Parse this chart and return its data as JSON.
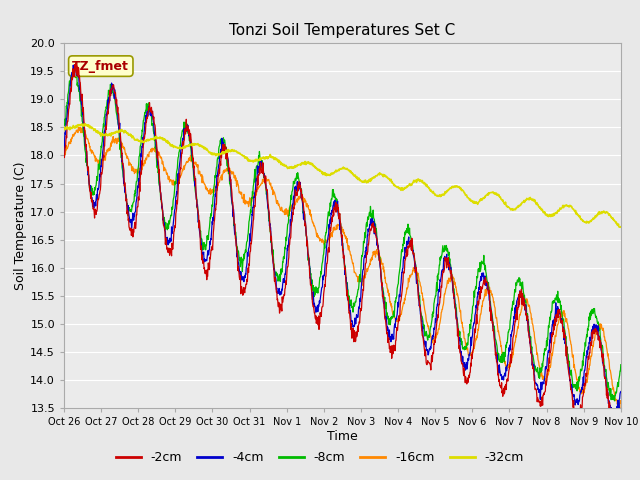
{
  "title": "Tonzi Soil Temperatures Set C",
  "xlabel": "Time",
  "ylabel": "Soil Temperature (C)",
  "ylim": [
    13.5,
    20.0
  ],
  "n_days": 15,
  "x_tick_labels": [
    "Oct 26",
    "Oct 27",
    "Oct 28",
    "Oct 29",
    "Oct 30",
    "Oct 31",
    "Nov 1",
    "Nov 2",
    "Nov 3",
    "Nov 4",
    "Nov 5",
    "Nov 6",
    "Nov 7",
    "Nov 8",
    "Nov 9",
    "Nov 10"
  ],
  "series_colors": {
    "-2cm": "#cc0000",
    "-4cm": "#0000cc",
    "-8cm": "#00bb00",
    "-16cm": "#ff8800",
    "-32cm": "#dddd00"
  },
  "bg_color": "#e8e8e8",
  "plot_bg_color": "#ebebeb",
  "annotation_text": "TZ_fmet",
  "annotation_bg": "#ffffcc",
  "annotation_border": "#999900",
  "annotation_text_color": "#aa0000",
  "grid_color": "#ffffff",
  "yticks": [
    13.5,
    14.0,
    14.5,
    15.0,
    15.5,
    16.0,
    16.5,
    17.0,
    17.5,
    18.0,
    18.5,
    19.0,
    19.5,
    20.0
  ]
}
